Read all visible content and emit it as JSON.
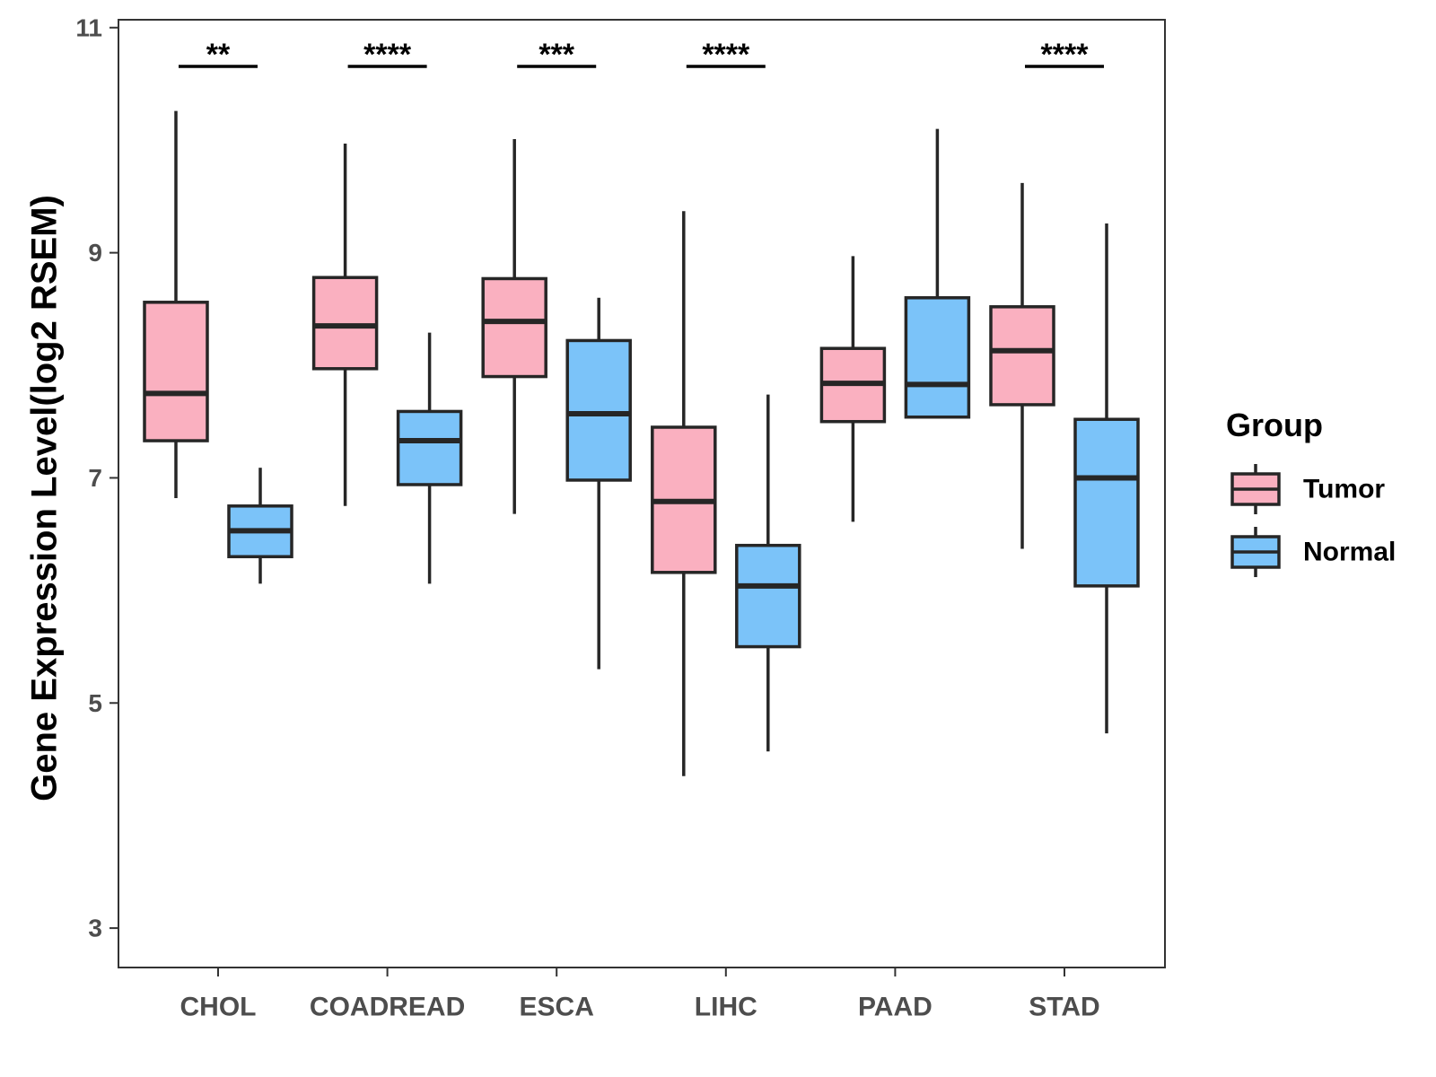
{
  "chart_data": {
    "type": "boxplot",
    "title": "",
    "xlabel": "",
    "ylabel": "Gene Expression Level(log2 RSEM)",
    "ylim": [
      2.65,
      11.07
    ],
    "yticks": [
      3,
      5,
      7,
      9,
      11
    ],
    "grid": false,
    "legend": {
      "title": "Group",
      "position": "right"
    },
    "categories": [
      "CHOL",
      "COADREAD",
      "ESCA",
      "LIHC",
      "PAAD",
      "STAD"
    ],
    "series": [
      {
        "name": "Tumor",
        "color": "#fab0c0",
        "boxes": [
          {
            "whisker_low": 6.82,
            "q1": 7.33,
            "median": 7.75,
            "q3": 8.56,
            "whisker_high": 10.26
          },
          {
            "whisker_low": 6.75,
            "q1": 7.97,
            "median": 8.35,
            "q3": 8.78,
            "whisker_high": 9.97
          },
          {
            "whisker_low": 6.68,
            "q1": 7.9,
            "median": 8.39,
            "q3": 8.77,
            "whisker_high": 10.01
          },
          {
            "whisker_low": 4.35,
            "q1": 6.16,
            "median": 6.79,
            "q3": 7.45,
            "whisker_high": 9.37
          },
          {
            "whisker_low": 6.61,
            "q1": 7.5,
            "median": 7.84,
            "q3": 8.15,
            "whisker_high": 8.97
          },
          {
            "whisker_low": 6.37,
            "q1": 7.65,
            "median": 8.13,
            "q3": 8.52,
            "whisker_high": 9.62
          }
        ]
      },
      {
        "name": "Normal",
        "color": "#7bc3f9",
        "boxes": [
          {
            "whisker_low": 6.06,
            "q1": 6.3,
            "median": 6.53,
            "q3": 6.75,
            "whisker_high": 7.09
          },
          {
            "whisker_low": 6.06,
            "q1": 6.94,
            "median": 7.33,
            "q3": 7.59,
            "whisker_high": 8.29
          },
          {
            "whisker_low": 5.3,
            "q1": 6.98,
            "median": 7.57,
            "q3": 8.22,
            "whisker_high": 8.6
          },
          {
            "whisker_low": 4.57,
            "q1": 5.5,
            "median": 6.04,
            "q3": 6.4,
            "whisker_high": 7.74
          },
          {
            "whisker_low": 7.54,
            "q1": 7.54,
            "median": 7.83,
            "q3": 8.6,
            "whisker_high": 10.1
          },
          {
            "whisker_low": 4.73,
            "q1": 6.04,
            "median": 7.0,
            "q3": 7.52,
            "whisker_high": 9.26
          }
        ]
      }
    ],
    "significance": [
      "**",
      "****",
      "***",
      "****",
      "",
      "****"
    ]
  }
}
